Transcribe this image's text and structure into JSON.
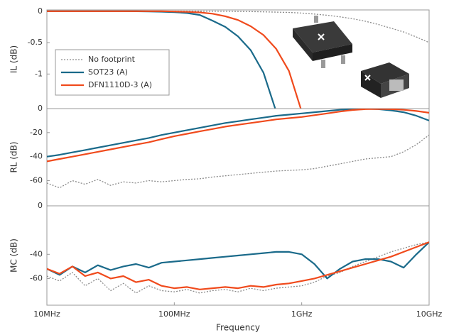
{
  "chart_data": [
    {
      "type": "line",
      "ylabel": "IL (dB)",
      "log_x": true,
      "xlim": [
        10000000,
        10000000000
      ],
      "ylim": [
        -1.55,
        0.02
      ],
      "yticks": [
        0,
        -0.5,
        -1
      ],
      "x": [
        10000000,
        12589254,
        15848932,
        19952623,
        25118864,
        31622777,
        39810717,
        50118723,
        63095734,
        79432823,
        100000000,
        125892541,
        158489319,
        199526231,
        251188643,
        316227766,
        398107171,
        501187234,
        630957344,
        794328235,
        1000000000,
        1258925412,
        1584893192,
        1995262315,
        2511886432,
        3162277660,
        3981071706,
        5011872336,
        6309573445,
        7943282347,
        10000000000
      ],
      "series": [
        {
          "name": "No footprint",
          "color": "#8a8a8a",
          "dash": "dotted",
          "values": [
            0,
            0,
            0,
            0,
            0,
            0,
            0,
            0,
            0,
            0,
            0,
            0,
            0,
            0,
            -0.002,
            -0.004,
            -0.006,
            -0.01,
            -0.015,
            -0.02,
            -0.03,
            -0.045,
            -0.065,
            -0.09,
            -0.12,
            -0.16,
            -0.21,
            -0.27,
            -0.33,
            -0.41,
            -0.5
          ]
        },
        {
          "name": "SOT23 (A)",
          "color": "#1a6a8a",
          "values": [
            0,
            0,
            0,
            0,
            0,
            0,
            0,
            -0.002,
            -0.004,
            -0.008,
            -0.015,
            -0.03,
            -0.06,
            -0.15,
            -0.25,
            -0.4,
            -0.62,
            -0.98,
            -1.6,
            null,
            null,
            null,
            null,
            null,
            null,
            null,
            null,
            null,
            null,
            null,
            null
          ]
        },
        {
          "name": "DFN1110D-3 (A)",
          "color": "#f04a1c",
          "values": [
            0,
            0,
            0,
            0,
            0,
            0,
            0,
            0,
            0,
            0,
            -0.005,
            -0.01,
            -0.02,
            -0.04,
            -0.08,
            -0.14,
            -0.24,
            -0.38,
            -0.6,
            -0.95,
            -1.6,
            null,
            null,
            null,
            null,
            null,
            null,
            null,
            null,
            null,
            null
          ]
        }
      ]
    },
    {
      "type": "line",
      "ylabel": "RL (dB)",
      "log_x": true,
      "xlim": [
        10000000,
        10000000000
      ],
      "ylim": [
        -81,
        0
      ],
      "yticks": [
        0,
        -20,
        -40,
        -60
      ],
      "x": [
        10000000,
        12589254,
        15848932,
        19952623,
        25118864,
        31622777,
        39810717,
        50118723,
        63095734,
        79432823,
        100000000,
        125892541,
        158489319,
        199526231,
        251188643,
        316227766,
        398107171,
        501187234,
        630957344,
        794328235,
        1000000000,
        1258925412,
        1584893192,
        1995262315,
        2511886432,
        3162277660,
        3981071706,
        5011872336,
        6309573445,
        7943282347,
        10000000000
      ],
      "series": [
        {
          "color": "#8a8a8a",
          "dash": "dotted",
          "values": [
            -62,
            -66,
            -60,
            -63,
            -59,
            -64,
            -61,
            -62,
            -60,
            -61,
            -60,
            -59,
            -58.5,
            -57,
            -56,
            -55,
            -54,
            -53,
            -52,
            -51.5,
            -51,
            -50,
            -48,
            -46,
            -44,
            -42,
            -41,
            -40,
            -36,
            -30,
            -22
          ]
        },
        {
          "color": "#1a6a8a",
          "values": [
            -40,
            -38.5,
            -36.5,
            -34.5,
            -32.5,
            -30.5,
            -28.5,
            -26.5,
            -24.5,
            -22,
            -20,
            -18,
            -16,
            -14,
            -12,
            -10.5,
            -9,
            -7.5,
            -6,
            -5,
            -4,
            -3,
            -2,
            -1,
            -0.5,
            -0.2,
            -0.5,
            -1.5,
            -3,
            -6,
            -10
          ]
        },
        {
          "color": "#f04a1c",
          "values": [
            -44,
            -42,
            -40,
            -38,
            -36,
            -34,
            -32,
            -30,
            -28,
            -25.5,
            -23,
            -21,
            -19,
            -17,
            -15,
            -13.5,
            -12,
            -10.5,
            -9,
            -8,
            -7,
            -5.5,
            -4,
            -2.5,
            -1.2,
            -0.5,
            -0.3,
            -0.5,
            -1,
            -2,
            -3.5
          ]
        }
      ]
    },
    {
      "type": "line",
      "ylabel": "MC (dB)",
      "xlabel": "Frequency",
      "log_x": true,
      "xlim": [
        10000000,
        10000000000
      ],
      "ylim": [
        -82,
        0
      ],
      "yticks": [
        0,
        -40,
        -60
      ],
      "xticks": [
        {
          "value": 10000000,
          "label": "10MHz"
        },
        {
          "value": 100000000,
          "label": "100MHz"
        },
        {
          "value": 1000000000,
          "label": "1GHz"
        },
        {
          "value": 10000000000,
          "label": "10GHz"
        }
      ],
      "x": [
        10000000,
        12589254,
        15848932,
        19952623,
        25118864,
        31622777,
        39810717,
        50118723,
        63095734,
        79432823,
        100000000,
        125892541,
        158489319,
        199526231,
        251188643,
        316227766,
        398107171,
        501187234,
        630957344,
        794328235,
        1000000000,
        1258925412,
        1584893192,
        1995262315,
        2511886432,
        3162277660,
        3981071706,
        5011872336,
        6309573445,
        7943282347,
        10000000000
      ],
      "series": [
        {
          "color": "#8a8a8a",
          "dash": "dotted",
          "values": [
            -58,
            -62,
            -55,
            -66,
            -60,
            -70,
            -64,
            -72,
            -66,
            -70,
            -71,
            -69,
            -72,
            -70,
            -69,
            -71,
            -68,
            -70,
            -68,
            -67,
            -66,
            -63,
            -58,
            -55,
            -50,
            -46,
            -42,
            -38,
            -35,
            -32,
            -30
          ]
        },
        {
          "color": "#1a6a8a",
          "values": [
            -52,
            -57,
            -50,
            -55,
            -49,
            -53,
            -50,
            -48,
            -51,
            -47,
            -46,
            -45,
            -44,
            -43,
            -42,
            -41,
            -40,
            -39,
            -38,
            -38,
            -40,
            -48,
            -60,
            -52,
            -46,
            -44,
            -44,
            -46,
            -51,
            -40,
            -30
          ]
        },
        {
          "color": "#f04a1c",
          "values": [
            -52,
            -56,
            -50,
            -58,
            -55,
            -60,
            -58,
            -63,
            -61,
            -66,
            -68,
            -67,
            -69,
            -68,
            -67,
            -68,
            -66,
            -67,
            -65,
            -64,
            -62,
            -60,
            -57,
            -54,
            -51,
            -48,
            -45,
            -42,
            -38,
            -34,
            -30
          ]
        }
      ]
    }
  ]
}
